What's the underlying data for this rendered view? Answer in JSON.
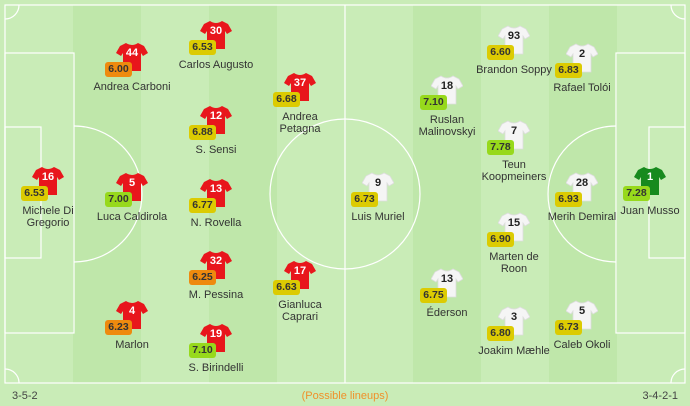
{
  "colors": {
    "home_shirt": "#e8161c",
    "away_shirt": "#f5f5f5",
    "away_keeper_shirt": "#178a1e",
    "rating_orange": "#ee8a0e",
    "rating_yellow": "#dccb02",
    "rating_green": "#97d91c",
    "possible_lineups": "#f0902a"
  },
  "home": {
    "formation": "3-5-2",
    "players": [
      {
        "number": "16",
        "name": "Michele Di Gregorio",
        "rating": "6.53"
      },
      {
        "number": "44",
        "name": "Andrea Carboni",
        "rating": "6.00"
      },
      {
        "number": "5",
        "name": "Luca Caldirola",
        "rating": "7.00"
      },
      {
        "number": "4",
        "name": "Marlon",
        "rating": "6.23"
      },
      {
        "number": "30",
        "name": "Carlos Augusto",
        "rating": "6.53"
      },
      {
        "number": "12",
        "name": "S. Sensi",
        "rating": "6.88"
      },
      {
        "number": "13",
        "name": "N. Rovella",
        "rating": "6.77"
      },
      {
        "number": "32",
        "name": "M. Pessina",
        "rating": "6.25"
      },
      {
        "number": "19",
        "name": "S. Birindelli",
        "rating": "7.10"
      },
      {
        "number": "37",
        "name": "Andrea Petagna",
        "rating": "6.68"
      },
      {
        "number": "17",
        "name": "Gianluca Caprari",
        "rating": "6.63"
      }
    ]
  },
  "away": {
    "formation": "3-4-2-1",
    "players": [
      {
        "number": "9",
        "name": "Luis Muriel",
        "rating": "6.73"
      },
      {
        "number": "18",
        "name": "Ruslan Malinovskyi",
        "rating": "7.10"
      },
      {
        "number": "13",
        "name": "Éderson",
        "rating": "6.75"
      },
      {
        "number": "93",
        "name": "Brandon Soppy",
        "rating": "6.60"
      },
      {
        "number": "7",
        "name": "Teun Koopmeiners",
        "rating": "7.78"
      },
      {
        "number": "15",
        "name": "Marten de Roon",
        "rating": "6.90"
      },
      {
        "number": "3",
        "name": "Joakim Mæhle",
        "rating": "6.80"
      },
      {
        "number": "2",
        "name": "Rafael Tolói",
        "rating": "6.83"
      },
      {
        "number": "28",
        "name": "Merih Demiral",
        "rating": "6.93"
      },
      {
        "number": "5",
        "name": "Caleb Okoli",
        "rating": "6.73"
      },
      {
        "number": "1",
        "name": "Juan Musso",
        "rating": "7.28"
      }
    ]
  },
  "footer": {
    "note": "(Possible lineups)"
  }
}
